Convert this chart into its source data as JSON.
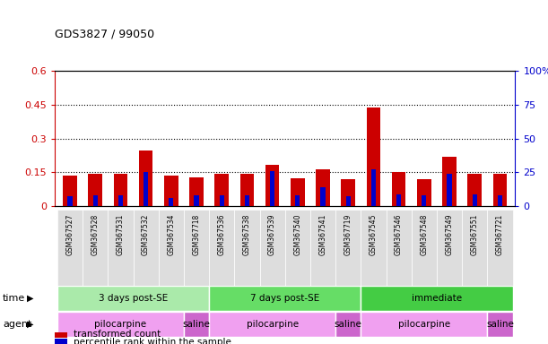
{
  "title": "GDS3827 / 99050",
  "samples": [
    "GSM367527",
    "GSM367528",
    "GSM367531",
    "GSM367532",
    "GSM367534",
    "GSM367718",
    "GSM367536",
    "GSM367538",
    "GSM367539",
    "GSM367540",
    "GSM367541",
    "GSM367719",
    "GSM367545",
    "GSM367546",
    "GSM367548",
    "GSM367549",
    "GSM367551",
    "GSM367721"
  ],
  "red_values": [
    0.135,
    0.143,
    0.144,
    0.245,
    0.135,
    0.128,
    0.143,
    0.144,
    0.185,
    0.125,
    0.165,
    0.122,
    0.435,
    0.15,
    0.122,
    0.22,
    0.143,
    0.143
  ],
  "blue_values_pct": [
    7.5,
    8.5,
    8.5,
    25.0,
    6.5,
    8.5,
    8.5,
    8.5,
    26.0,
    8.0,
    14.0,
    7.5,
    27.5,
    9.0,
    8.5,
    24.0,
    9.0,
    8.0
  ],
  "ylim_left": [
    0,
    0.6
  ],
  "ylim_right": [
    0,
    100
  ],
  "yticks_left": [
    0,
    0.15,
    0.3,
    0.45,
    0.6
  ],
  "yticks_right": [
    0,
    25,
    50,
    75,
    100
  ],
  "red_color": "#cc0000",
  "blue_color": "#0000cc",
  "time_groups": [
    {
      "label": "3 days post-SE",
      "start": 0,
      "end": 5,
      "color": "#aaeaaa"
    },
    {
      "label": "7 days post-SE",
      "start": 6,
      "end": 11,
      "color": "#66dd66"
    },
    {
      "label": "immediate",
      "start": 12,
      "end": 17,
      "color": "#44cc44"
    }
  ],
  "agent_groups": [
    {
      "label": "pilocarpine",
      "start": 0,
      "end": 4,
      "color": "#f0a0f0"
    },
    {
      "label": "saline",
      "start": 5,
      "end": 5,
      "color": "#cc66cc"
    },
    {
      "label": "pilocarpine",
      "start": 6,
      "end": 10,
      "color": "#f0a0f0"
    },
    {
      "label": "saline",
      "start": 11,
      "end": 11,
      "color": "#cc66cc"
    },
    {
      "label": "pilocarpine",
      "start": 12,
      "end": 16,
      "color": "#f0a0f0"
    },
    {
      "label": "saline",
      "start": 17,
      "end": 17,
      "color": "#cc66cc"
    }
  ],
  "legend_red": "transformed count",
  "legend_blue": "percentile rank within the sample",
  "xlabel_time": "time",
  "xlabel_agent": "agent",
  "axis_label_color_left": "#cc0000",
  "axis_label_color_right": "#0000cc",
  "sample_label_bg": "#dddddd",
  "grid_lines": [
    0.15,
    0.3,
    0.45
  ]
}
